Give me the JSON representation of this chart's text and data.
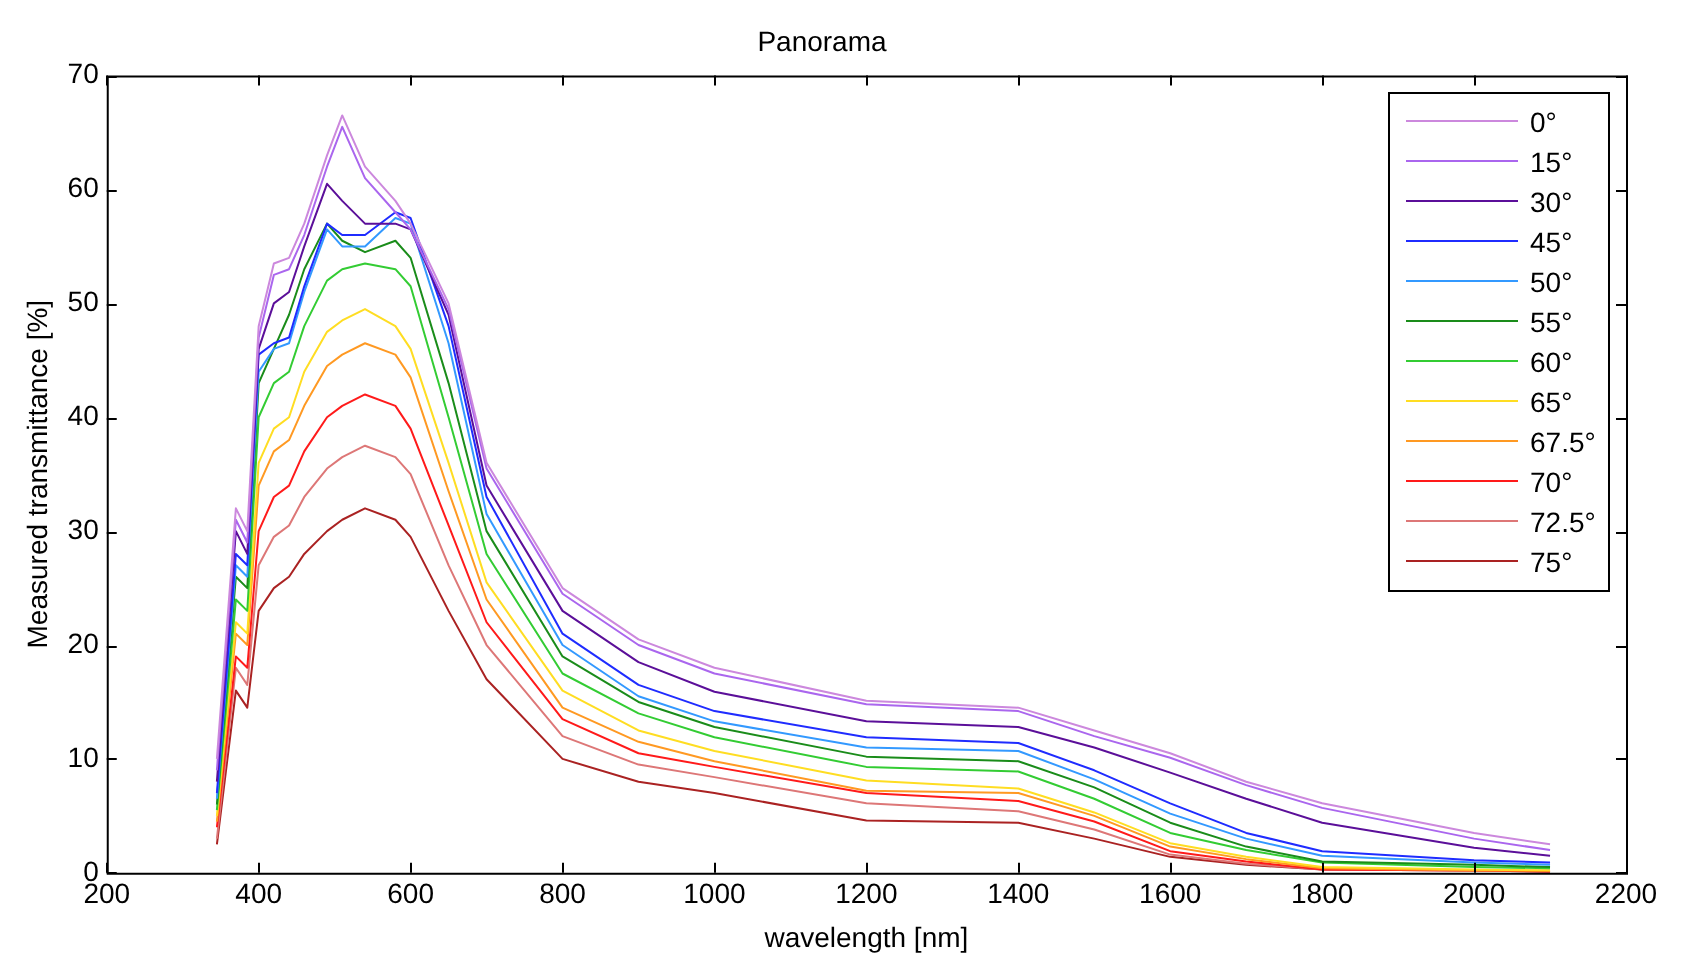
{
  "chart_data": {
    "type": "line",
    "title": "Panorama",
    "xlabel": "wavelength [nm]",
    "ylabel": "Measured transmittance [%]",
    "x": [
      345,
      370,
      385,
      400,
      420,
      440,
      460,
      490,
      510,
      540,
      580,
      600,
      650,
      700,
      800,
      900,
      1000,
      1200,
      1400,
      1500,
      1600,
      1700,
      1800,
      2000,
      2100
    ],
    "xlim": [
      200,
      2200
    ],
    "xticks": [
      200,
      400,
      600,
      800,
      1000,
      1200,
      1400,
      1600,
      1800,
      2000,
      2200
    ],
    "ylim": [
      0,
      70
    ],
    "yticks": [
      0,
      10,
      20,
      30,
      40,
      50,
      60,
      70
    ],
    "legend": "top right",
    "series": [
      {
        "name": "0°",
        "color": "#cc88dd",
        "values": [
          10,
          32,
          30,
          48,
          53.5,
          54,
          57,
          63,
          66.5,
          62,
          59,
          57,
          50,
          36,
          25,
          20.5,
          18,
          15.1,
          14.5,
          12.5,
          10.5,
          8,
          6.1,
          3.5,
          2.5
        ]
      },
      {
        "name": "15°",
        "color": "#aa66ee",
        "values": [
          9,
          31,
          29,
          47,
          52.5,
          53,
          56,
          62,
          65.5,
          61,
          58,
          56.5,
          49.5,
          35.5,
          24.5,
          20,
          17.5,
          14.8,
          14.2,
          12,
          10.1,
          7.7,
          5.7,
          3,
          2
        ]
      },
      {
        "name": "30°",
        "color": "#5b0f99",
        "values": [
          8,
          30,
          28,
          46,
          50,
          51,
          55,
          60.5,
          59,
          57,
          57,
          56.5,
          49,
          34,
          23,
          18.5,
          15.9,
          13.3,
          12.8,
          11,
          8.8,
          6.5,
          4.4,
          2.2,
          1.5
        ]
      },
      {
        "name": "45°",
        "color": "#1f2cff",
        "values": [
          7,
          28,
          27,
          45.5,
          46.5,
          47,
          51.5,
          57,
          56,
          56,
          58,
          57.5,
          48,
          33,
          21,
          16.5,
          14.2,
          11.9,
          11.4,
          9,
          6.1,
          3.5,
          1.9,
          1.1,
          0.9
        ]
      },
      {
        "name": "50°",
        "color": "#3399ff",
        "values": [
          6.5,
          27,
          26,
          44,
          46,
          46.5,
          51,
          56.5,
          55,
          55,
          57.5,
          57,
          46.5,
          31.5,
          20,
          15.5,
          13.3,
          11,
          10.7,
          8.2,
          5.2,
          3,
          1.5,
          0.9,
          0.7
        ]
      },
      {
        "name": "55°",
        "color": "#1a8c1a",
        "values": [
          6,
          26,
          25,
          43,
          46,
          49,
          53,
          57,
          55.5,
          54.5,
          55.5,
          54,
          43,
          30,
          19,
          15,
          12.8,
          10.2,
          9.8,
          7.5,
          4.4,
          2.3,
          1,
          0.7,
          0.5
        ]
      },
      {
        "name": "60°",
        "color": "#33cc33",
        "values": [
          5.5,
          24,
          23,
          40,
          43,
          44,
          48,
          52,
          53,
          53.5,
          53,
          51.5,
          40,
          28,
          17.5,
          14,
          11.9,
          9.3,
          8.9,
          6.5,
          3.5,
          2,
          0.9,
          0.5,
          0.4
        ]
      },
      {
        "name": "65°",
        "color": "#ffdd22",
        "values": [
          5,
          22,
          21,
          36,
          39,
          40,
          44,
          47.5,
          48.5,
          49.5,
          48,
          46,
          36,
          25.5,
          16,
          12.5,
          10.7,
          8.1,
          7.4,
          5.3,
          2.6,
          1.4,
          0.5,
          0.3,
          0.2
        ]
      },
      {
        "name": "67.5°",
        "color": "#ff9922",
        "values": [
          4.5,
          21,
          20,
          34,
          37,
          38,
          41,
          44.5,
          45.5,
          46.5,
          45.5,
          43.5,
          33.5,
          24,
          14.5,
          11.5,
          9.8,
          7.2,
          7,
          5,
          2.3,
          1.2,
          0.4,
          0.2,
          0.2
        ]
      },
      {
        "name": "70°",
        "color": "#ff1a1a",
        "values": [
          4,
          19,
          18,
          30,
          33,
          34,
          37,
          40,
          41,
          42,
          41,
          39,
          30.5,
          22,
          13.5,
          10.5,
          9.3,
          7,
          6.3,
          4.5,
          1.9,
          1,
          0.3,
          0.2,
          0.1
        ]
      },
      {
        "name": "72.5°",
        "color": "#dd7777",
        "values": [
          3,
          18,
          16.5,
          27,
          29.5,
          30.5,
          33,
          35.5,
          36.5,
          37.5,
          36.5,
          35,
          27,
          20,
          12,
          9.5,
          8.4,
          6.1,
          5.4,
          3.8,
          1.6,
          0.8,
          0.3,
          0.2,
          0.1
        ]
      },
      {
        "name": "75°",
        "color": "#aa2222",
        "values": [
          2.5,
          16,
          14.5,
          23,
          25,
          26,
          28,
          30,
          31,
          32,
          31,
          29.5,
          23,
          17,
          10,
          8,
          7,
          4.6,
          4.4,
          3,
          1.4,
          0.7,
          0.3,
          0.2,
          0.1
        ]
      }
    ]
  }
}
